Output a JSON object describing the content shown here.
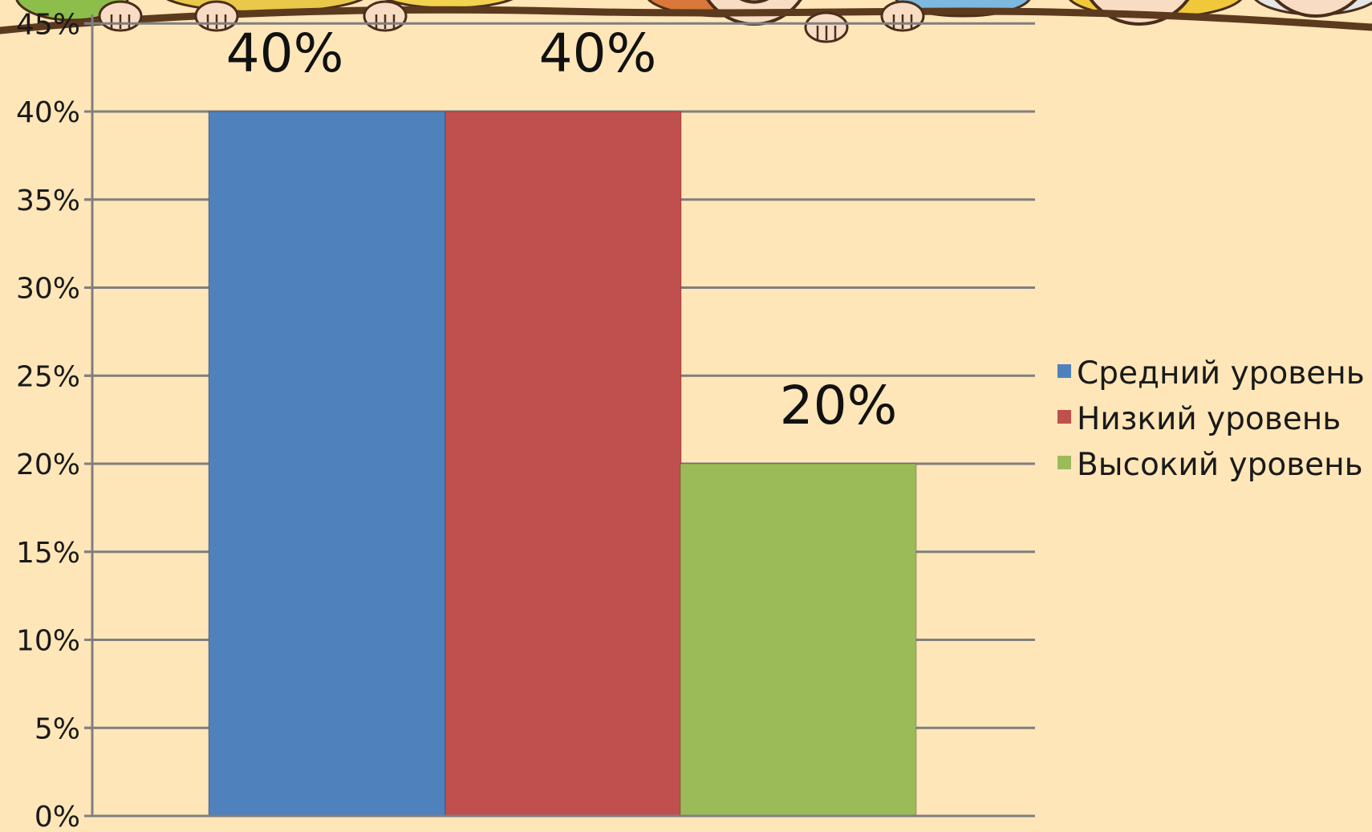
{
  "chart_data": {
    "type": "bar",
    "categories": [
      "Средний уровень",
      "Низкий уровень",
      "Высокий уровень"
    ],
    "values": [
      40,
      40,
      20
    ],
    "data_labels": [
      "40%",
      "40%",
      "20%"
    ],
    "colors": [
      "#4F81BD",
      "#C0504D",
      "#9BBB59"
    ],
    "ylim": [
      0,
      45
    ],
    "yticks": [
      0,
      5,
      10,
      15,
      20,
      25,
      30,
      35,
      40,
      45
    ],
    "ytick_labels": [
      "0%",
      "5%",
      "10%",
      "15%",
      "20%",
      "25%",
      "30%",
      "35%",
      "40%",
      "45%"
    ],
    "grid": true,
    "legend_position": "right",
    "legend": [
      {
        "label": "Средний уровень",
        "color": "#4F81BD"
      },
      {
        "label": "Низкий уровень",
        "color": "#C0504D"
      },
      {
        "label": "Высокий уровень",
        "color": "#9BBB59"
      }
    ],
    "title": "",
    "xlabel": "",
    "ylabel": ""
  },
  "decoration": {
    "background_color": "#FFE6B8",
    "border_color": "#5C3A1E",
    "skin_color": "#F9DCC4",
    "outline_color": "#4A2E1A",
    "grid_color": "#7F7F7F"
  }
}
